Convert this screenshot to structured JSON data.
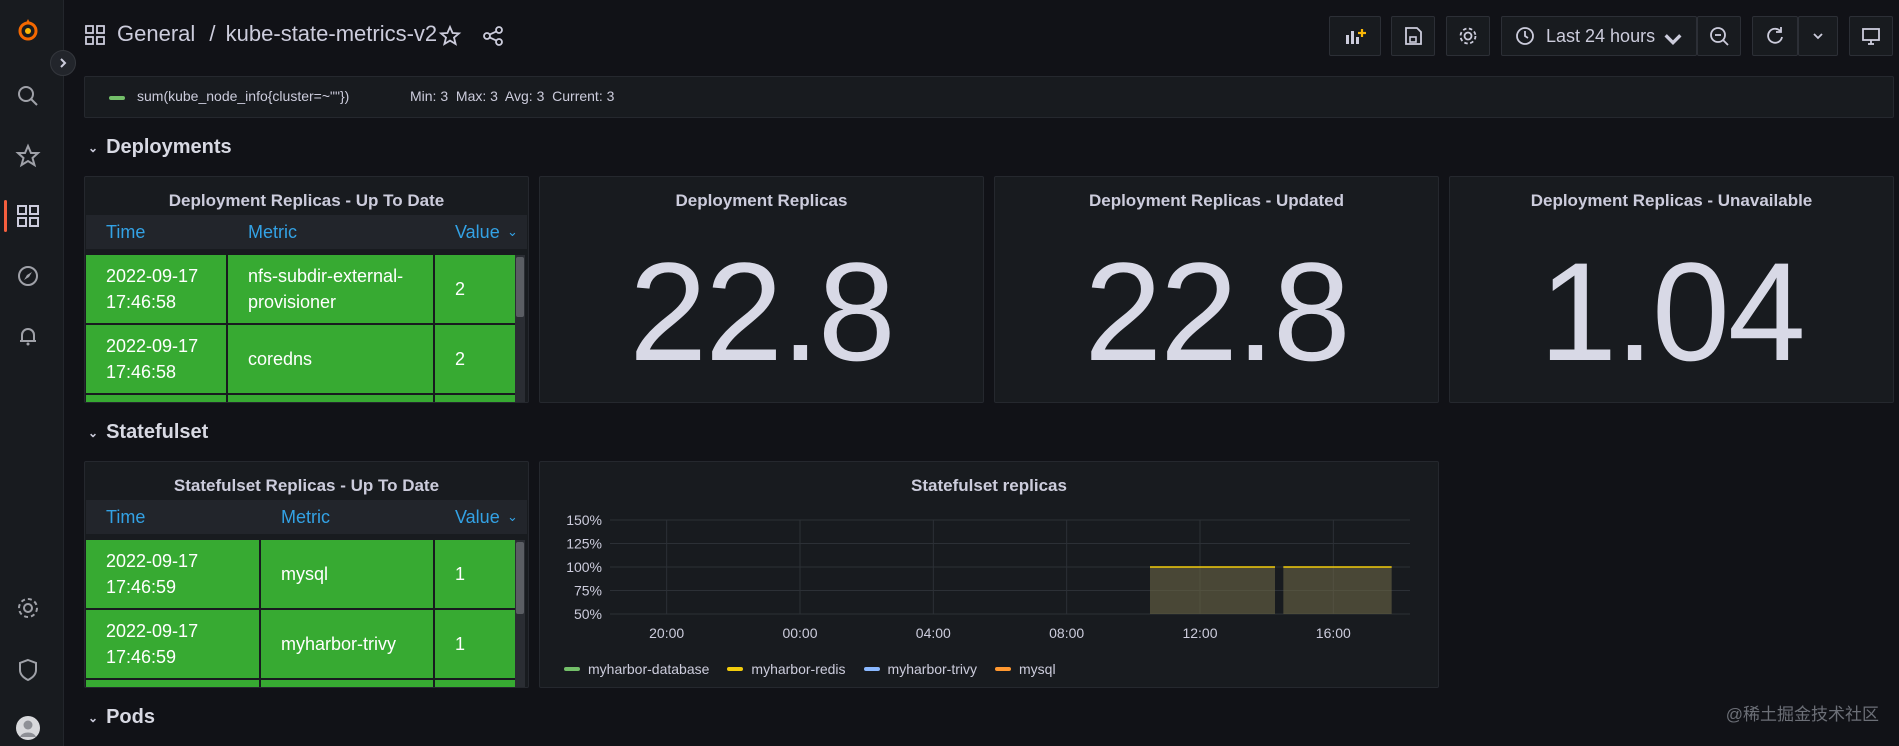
{
  "topbar": {
    "breadcrumb_folder": "General",
    "breadcrumb_sep": "/",
    "dashboard_title": "kube-state-metrics-v2",
    "time_range": "Last 24 hours"
  },
  "top_legend": {
    "series": "sum(kube_node_info{cluster=~\"\"})",
    "stats": "Min: 3  Max: 3  Avg: 3  Current: 3",
    "color": "#73bf69"
  },
  "rows": {
    "deployments": "Deployments",
    "statefulset": "Statefulset",
    "pods": "Pods"
  },
  "deploy_table": {
    "title": "Deployment Replicas - Up To Date",
    "columns": [
      "Time",
      "Metric",
      "Value"
    ],
    "rows": [
      {
        "time_date": "2022-09-17",
        "time_clock": "17:46:58",
        "metric": "nfs-subdir-external-provisioner",
        "value": "2"
      },
      {
        "time_date": "2022-09-17",
        "time_clock": "17:46:58",
        "metric": "coredns",
        "value": "2"
      }
    ]
  },
  "stats": [
    {
      "title": "Deployment Replicas",
      "value": "22.8"
    },
    {
      "title": "Deployment Replicas - Updated",
      "value": "22.8"
    },
    {
      "title": "Deployment Replicas - Unavailable",
      "value": "1.04"
    }
  ],
  "sts_table": {
    "title": "Statefulset Replicas - Up To Date",
    "columns": [
      "Time",
      "Metric",
      "Value"
    ],
    "rows": [
      {
        "time_date": "2022-09-17",
        "time_clock": "17:46:59",
        "metric": "mysql",
        "value": "1"
      },
      {
        "time_date": "2022-09-17",
        "time_clock": "17:46:59",
        "metric": "myharbor-trivy",
        "value": "1"
      }
    ]
  },
  "chart_data": {
    "type": "area",
    "title": "Statefulset replicas",
    "x_ticks": [
      "20:00",
      "00:00",
      "04:00",
      "08:00",
      "12:00",
      "16:00"
    ],
    "y_ticks": [
      "150%",
      "125%",
      "100%",
      "75%",
      "50%"
    ],
    "ylim": [
      50,
      150
    ],
    "series": [
      {
        "name": "myharbor-database",
        "color": "#73bf69"
      },
      {
        "name": "myharbor-redis",
        "color": "#f2cc0c"
      },
      {
        "name": "myharbor-trivy",
        "color": "#8ab8ff"
      },
      {
        "name": "mysql",
        "color": "#ff9830"
      }
    ],
    "segments": [
      {
        "x_start": "10:30",
        "x_end": "14:15",
        "y": 100
      },
      {
        "x_start": "14:30",
        "x_end": "17:45",
        "y": 100
      }
    ],
    "legend_placement": "bottom-left",
    "grid": true
  },
  "watermark": "@稀土掘金技术社区"
}
